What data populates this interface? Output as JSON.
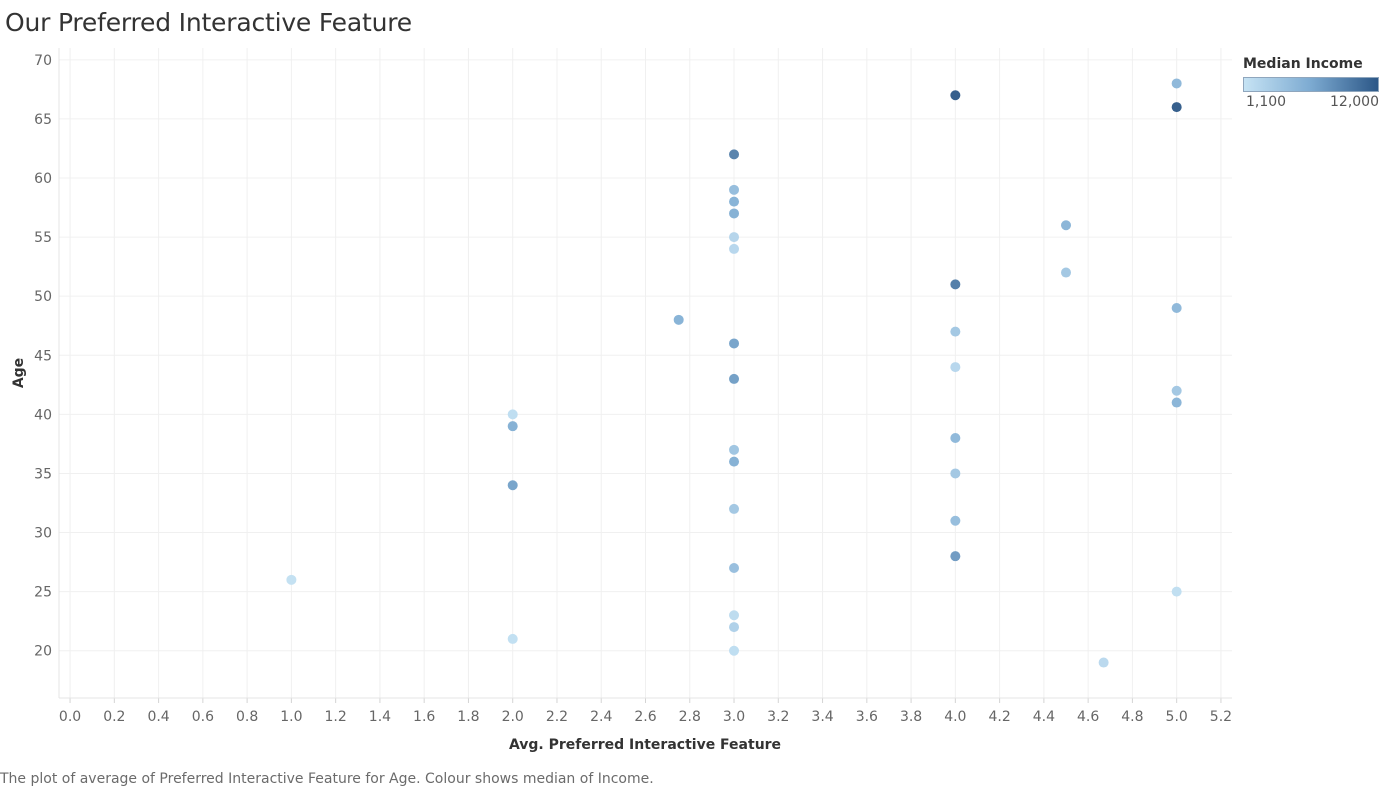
{
  "title": "Our Preferred Interactive Feature",
  "caption": "The plot of average of Preferred Interactive Feature for Age. Colour shows median of Income.",
  "legend": {
    "title": "Median Income",
    "min_label": "1,100",
    "max_label": "12,000",
    "placement": "top-right",
    "color_low": "#c6e3f4",
    "color_high": "#2c5787"
  },
  "chart_data": {
    "type": "scatter",
    "title": "Our Preferred Interactive Feature",
    "xlabel": "Avg. Preferred Interactive Feature",
    "ylabel": "Age",
    "xlim": [
      -0.05,
      5.25
    ],
    "ylim": [
      16,
      71
    ],
    "x_ticks": [
      "0.0",
      "0.2",
      "0.4",
      "0.6",
      "0.8",
      "1.0",
      "1.2",
      "1.4",
      "1.6",
      "1.8",
      "2.0",
      "2.2",
      "2.4",
      "2.6",
      "2.8",
      "3.0",
      "3.2",
      "3.4",
      "3.6",
      "3.8",
      "4.0",
      "4.2",
      "4.4",
      "4.6",
      "4.8",
      "5.0",
      "5.2"
    ],
    "y_ticks": [
      "20",
      "25",
      "30",
      "35",
      "40",
      "45",
      "50",
      "55",
      "60",
      "65",
      "70"
    ],
    "grid": true,
    "color_field": "Median Income",
    "color_range": [
      1100,
      12000
    ],
    "points": [
      {
        "x": 1.0,
        "y": 26,
        "income": 1500
      },
      {
        "x": 2.0,
        "y": 40,
        "income": 1800
      },
      {
        "x": 2.0,
        "y": 39,
        "income": 6200
      },
      {
        "x": 2.0,
        "y": 34,
        "income": 7200
      },
      {
        "x": 2.0,
        "y": 21,
        "income": 1600
      },
      {
        "x": 2.75,
        "y": 48,
        "income": 6000
      },
      {
        "x": 3.0,
        "y": 62,
        "income": 9500
      },
      {
        "x": 3.0,
        "y": 59,
        "income": 5000
      },
      {
        "x": 3.0,
        "y": 58,
        "income": 6000
      },
      {
        "x": 3.0,
        "y": 57,
        "income": 6200
      },
      {
        "x": 3.0,
        "y": 55,
        "income": 2600
      },
      {
        "x": 3.0,
        "y": 54,
        "income": 2400
      },
      {
        "x": 3.0,
        "y": 46,
        "income": 7200
      },
      {
        "x": 3.0,
        "y": 43,
        "income": 7500
      },
      {
        "x": 3.0,
        "y": 37,
        "income": 4200
      },
      {
        "x": 3.0,
        "y": 36,
        "income": 6200
      },
      {
        "x": 3.0,
        "y": 32,
        "income": 4000
      },
      {
        "x": 3.0,
        "y": 27,
        "income": 4800
      },
      {
        "x": 3.0,
        "y": 23,
        "income": 2000
      },
      {
        "x": 3.0,
        "y": 22,
        "income": 3000
      },
      {
        "x": 3.0,
        "y": 20,
        "income": 1800
      },
      {
        "x": 4.0,
        "y": 67,
        "income": 12000
      },
      {
        "x": 4.0,
        "y": 51,
        "income": 9800
      },
      {
        "x": 4.0,
        "y": 47,
        "income": 4000
      },
      {
        "x": 4.0,
        "y": 44,
        "income": 2400
      },
      {
        "x": 4.0,
        "y": 38,
        "income": 5500
      },
      {
        "x": 4.0,
        "y": 35,
        "income": 4000
      },
      {
        "x": 4.0,
        "y": 31,
        "income": 5000
      },
      {
        "x": 4.0,
        "y": 28,
        "income": 7800
      },
      {
        "x": 4.5,
        "y": 56,
        "income": 5800
      },
      {
        "x": 4.5,
        "y": 52,
        "income": 4000
      },
      {
        "x": 4.67,
        "y": 19,
        "income": 2200
      },
      {
        "x": 5.0,
        "y": 68,
        "income": 5500
      },
      {
        "x": 5.0,
        "y": 66,
        "income": 12000
      },
      {
        "x": 5.0,
        "y": 49,
        "income": 5500
      },
      {
        "x": 5.0,
        "y": 42,
        "income": 4000
      },
      {
        "x": 5.0,
        "y": 41,
        "income": 5800
      },
      {
        "x": 5.0,
        "y": 25,
        "income": 1700
      }
    ]
  }
}
